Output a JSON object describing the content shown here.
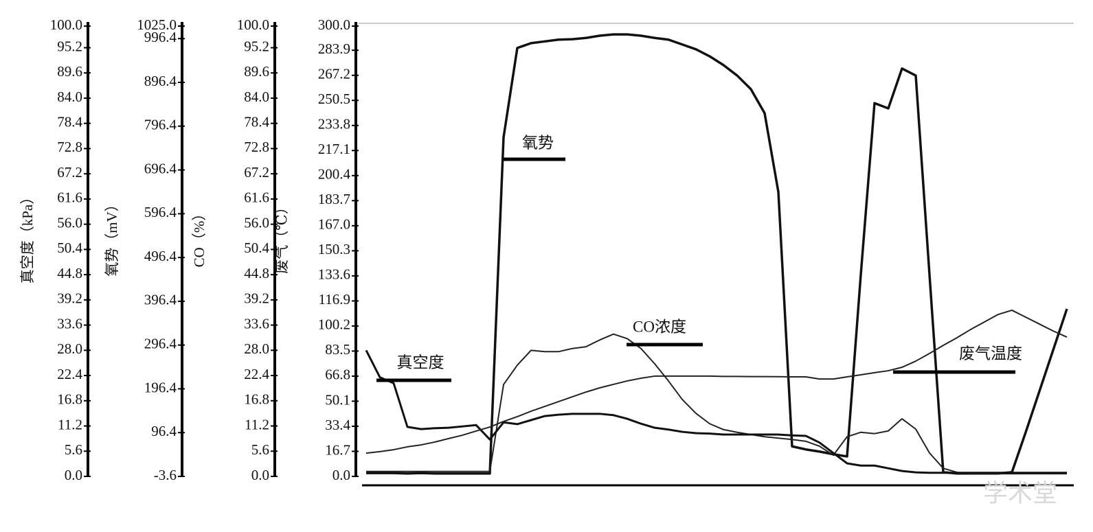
{
  "chart_data": {
    "type": "line",
    "watermark": "学术堂",
    "ylabel": "真空度（kPa）",
    "ylim": [
      0,
      100
    ],
    "yticks": [
      {
        "value": 0,
        "label": "0.0"
      },
      5.6,
      11.2,
      16.8,
      22.4,
      {
        "value": 28,
        "label": "28.0"
      },
      33.6,
      39.2,
      44.8,
      50.4,
      {
        "value": 56,
        "label": "56.0"
      },
      61.6,
      67.2,
      72.8,
      78.4,
      {
        "value": 84,
        "label": "84.0"
      },
      89.6,
      95.2,
      {
        "value": 100,
        "label": "100.0"
      }
    ],
    "y2label": "氧势（mV）",
    "y2lim": [
      -3.6,
      1025
    ],
    "y2ticks": [
      -3.6,
      96.4,
      196.4,
      296.4,
      396.4,
      496.4,
      596.4,
      696.4,
      796.4,
      896.4,
      996.4,
      {
        "value": 1025,
        "label": "1025.0"
      }
    ],
    "y3label": "CO（%）",
    "y3lim": [
      0,
      100
    ],
    "y3ticks": [
      {
        "value": 0,
        "label": "0.0"
      },
      5.6,
      11.2,
      16.8,
      22.4,
      {
        "value": 28,
        "label": "28.0"
      },
      33.6,
      39.2,
      44.8,
      50.4,
      {
        "value": 56,
        "label": "56.0"
      },
      61.6,
      67.2,
      72.8,
      78.4,
      {
        "value": 84,
        "label": "84.0"
      },
      89.6,
      95.2,
      {
        "value": 100,
        "label": "100.0"
      }
    ],
    "y4label": "废气（℃）",
    "y4lim": [
      0,
      300
    ],
    "y4ticks": [
      {
        "value": 0,
        "label": "0.0"
      },
      16.7,
      33.4,
      50.1,
      66.8,
      83.5,
      100.2,
      116.9,
      133.6,
      150.3,
      {
        "value": 167,
        "label": "167.0"
      },
      183.7,
      200.4,
      217.1,
      233.8,
      250.5,
      267.2,
      283.9,
      {
        "value": 300,
        "label": "300.0"
      }
    ],
    "categories": [
      null,
      null,
      null,
      null,
      null,
      null,
      null,
      null,
      null,
      null,
      null,
      null,
      null,
      null,
      null,
      null,
      null,
      null,
      null,
      null,
      null,
      null,
      null,
      null,
      null,
      null,
      null,
      null,
      null,
      null,
      null,
      null,
      null,
      null,
      null,
      null,
      null,
      null,
      null,
      null,
      null,
      null,
      null,
      null,
      null,
      null,
      null,
      null,
      null,
      null,
      null,
      null
    ],
    "series": [
      {
        "name": "氧势",
        "axis": "y2",
        "color": "#111111",
        "values": [
          4,
          4,
          4,
          3,
          4,
          3,
          3,
          3,
          3,
          3,
          771,
          975,
          986,
          990,
          994,
          995,
          998,
          1003,
          1006,
          1006,
          1003,
          998,
          994,
          983,
          972,
          956,
          936,
          912,
          881,
          826,
          646,
          65,
          58,
          53,
          47,
          42,
          457,
          849,
          837,
          928,
          912,
          457,
          6,
          3,
          3,
          3,
          3,
          6,
          97,
          191,
          285,
          379
        ]
      },
      {
        "name": "CO浓度",
        "axis": "y3",
        "color": "#222222",
        "values": [
          1.1,
          1.1,
          1.1,
          1.1,
          1.1,
          1.1,
          1.1,
          1.1,
          1.1,
          1.1,
          20.4,
          24.7,
          28.0,
          27.7,
          27.7,
          28.4,
          28.8,
          30.3,
          31.6,
          30.6,
          28.4,
          25.0,
          21.2,
          17.1,
          14.0,
          11.7,
          10.4,
          9.8,
          9.3,
          8.8,
          8.5,
          8.2,
          7.8,
          6.7,
          4.7,
          8.8,
          9.8,
          9.5,
          10.1,
          12.8,
          10.5,
          5.2,
          1.8,
          0.9,
          0.6,
          0.6,
          0.6,
          0.6,
          0.6,
          0.6,
          0.6,
          0.6
        ]
      },
      {
        "name": "真空度",
        "axis": "y",
        "color": "#111111",
        "values": [
          28.0,
          22.0,
          20.7,
          11.0,
          10.5,
          10.7,
          10.8,
          11.1,
          11.4,
          8.2,
          12.0,
          11.6,
          12.5,
          13.4,
          13.7,
          13.9,
          13.9,
          13.9,
          13.6,
          12.8,
          11.7,
          10.8,
          10.4,
          9.9,
          9.6,
          9.5,
          9.3,
          9.3,
          9.3,
          9.3,
          9.3,
          9.1,
          9.0,
          7.5,
          5.2,
          2.9,
          2.4,
          2.4,
          1.8,
          1.2,
          0.9,
          0.8,
          0.8,
          0.8,
          0.8,
          0.8,
          0.8,
          0.8,
          0.8,
          0.8,
          0.8,
          0.8
        ]
      },
      {
        "name": "废气温度",
        "axis": "y4",
        "color": "#222222",
        "values": [
          15.5,
          16.5,
          17.8,
          19.7,
          21.0,
          22.9,
          25.2,
          27.4,
          30.2,
          32.9,
          36.6,
          39.8,
          43.4,
          46.6,
          49.8,
          53.0,
          56.2,
          59.0,
          61.3,
          63.6,
          65.4,
          66.8,
          66.8,
          66.8,
          66.8,
          66.8,
          66.6,
          66.6,
          66.5,
          66.5,
          66.4,
          66.3,
          66.3,
          64.9,
          64.9,
          66.3,
          67.7,
          69.1,
          70.4,
          72.7,
          76.8,
          81.9,
          87.3,
          92.4,
          97.9,
          102.9,
          107.9,
          110.7,
          106.1,
          101.5,
          96.9,
          92.8
        ]
      }
    ]
  }
}
